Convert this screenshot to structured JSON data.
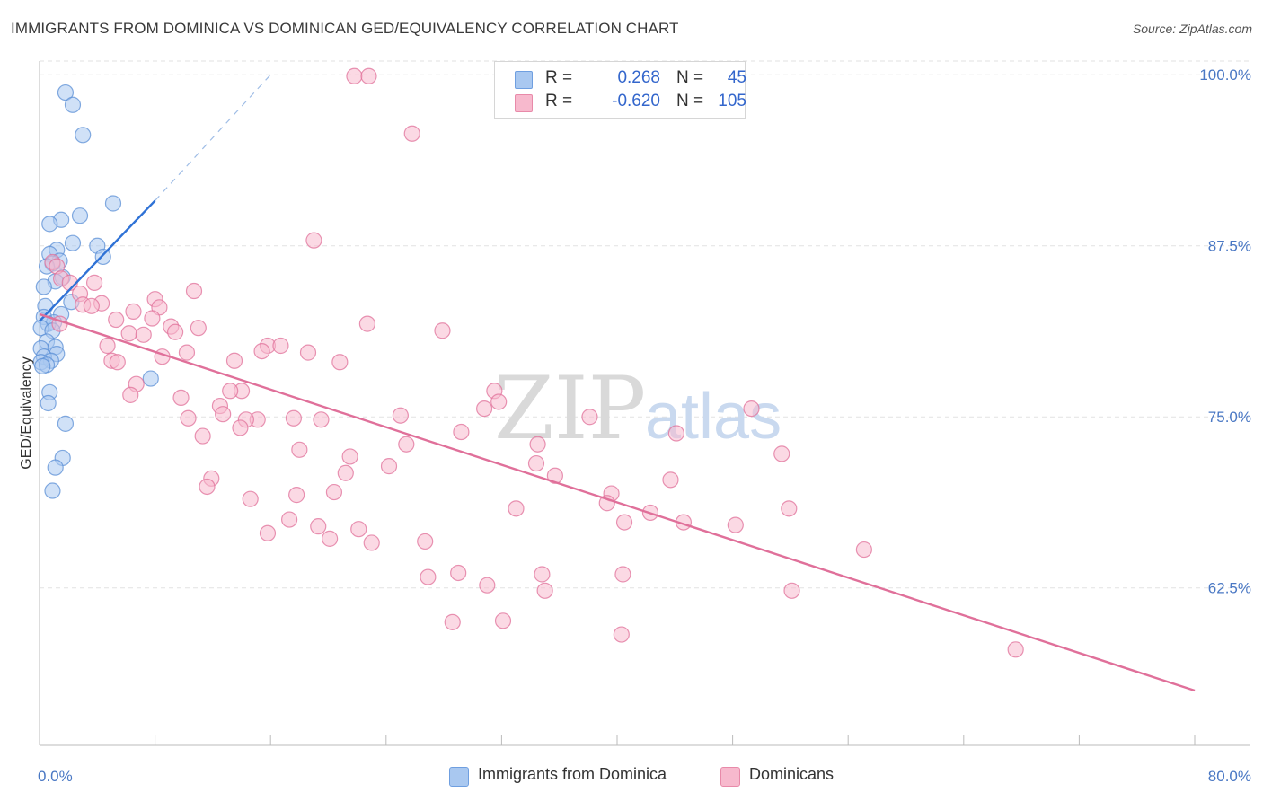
{
  "title": "IMMIGRANTS FROM DOMINICA VS DOMINICAN GED/EQUIVALENCY CORRELATION CHART",
  "source": "Source: ZipAtlas.com",
  "watermark": {
    "zip": "ZIP",
    "atlas": "atlas"
  },
  "legend_top": {
    "rows": [
      {
        "r_label": "R =",
        "r_value": "0.268",
        "n_label": "N =",
        "n_value": "45",
        "color": "#a9c8f0"
      },
      {
        "r_label": "R =",
        "r_value": "-0.620",
        "n_label": "N =",
        "n_value": "105",
        "color": "#f7b9cd"
      }
    ]
  },
  "legend_bottom": [
    {
      "label": "Immigrants from Dominica",
      "color": "#a9c8f0"
    },
    {
      "label": "Dominicans",
      "color": "#f7b9cd"
    }
  ],
  "chart_data": {
    "type": "scatter",
    "title": "IMMIGRANTS FROM DOMINICA VS DOMINICAN GED/EQUIVALENCY CORRELATION CHART",
    "xlabel": "",
    "ylabel": "GED/Equivalency",
    "xlim": [
      0,
      80
    ],
    "ylim": [
      51,
      101
    ],
    "x_ticks": [
      0,
      8,
      16,
      24,
      32,
      40,
      48,
      56,
      64,
      72,
      80
    ],
    "x_tick_labels_shown": {
      "0": "0.0%",
      "80": "80.0%"
    },
    "y_ticks": [
      62.5,
      75.0,
      87.5,
      100.0
    ],
    "y_tick_labels": [
      "62.5%",
      "75.0%",
      "87.5%",
      "100.0%"
    ],
    "grid": true,
    "series": [
      {
        "name": "Immigrants from Dominica",
        "color": "#5b8fd6",
        "fill": "#a9c8f0",
        "r": 0.268,
        "n": 45,
        "trend": {
          "x0": 0.0,
          "y0": 82.0,
          "x1": 8.0,
          "y1": 90.8,
          "dash_to_x": 16.0,
          "dash_to_y": 100.0
        },
        "points": [
          [
            1.8,
            98.7
          ],
          [
            2.3,
            97.8
          ],
          [
            3.0,
            95.6
          ],
          [
            5.1,
            90.6
          ],
          [
            2.8,
            89.7
          ],
          [
            1.5,
            89.4
          ],
          [
            0.7,
            89.1
          ],
          [
            2.3,
            87.7
          ],
          [
            4.0,
            87.5
          ],
          [
            1.2,
            87.2
          ],
          [
            0.7,
            86.9
          ],
          [
            4.4,
            86.7
          ],
          [
            1.4,
            86.4
          ],
          [
            0.9,
            86.2
          ],
          [
            0.5,
            86.0
          ],
          [
            1.6,
            85.2
          ],
          [
            1.1,
            84.9
          ],
          [
            0.3,
            84.5
          ],
          [
            2.2,
            83.4
          ],
          [
            0.4,
            83.1
          ],
          [
            1.5,
            82.5
          ],
          [
            0.3,
            82.3
          ],
          [
            1.0,
            81.9
          ],
          [
            0.6,
            81.8
          ],
          [
            0.1,
            81.5
          ],
          [
            0.9,
            81.3
          ],
          [
            0.5,
            80.5
          ],
          [
            1.1,
            80.1
          ],
          [
            0.1,
            80.0
          ],
          [
            1.2,
            79.6
          ],
          [
            0.3,
            79.4
          ],
          [
            0.8,
            79.1
          ],
          [
            0.1,
            79.0
          ],
          [
            0.5,
            78.8
          ],
          [
            0.2,
            78.7
          ],
          [
            7.7,
            77.8
          ],
          [
            0.7,
            76.8
          ],
          [
            0.6,
            76.0
          ],
          [
            1.8,
            74.5
          ],
          [
            1.6,
            72.0
          ],
          [
            1.1,
            71.3
          ],
          [
            0.9,
            69.6
          ]
        ]
      },
      {
        "name": "Dominicans",
        "color": "#e0709a",
        "fill": "#f7b9cd",
        "r": -0.62,
        "n": 105,
        "trend": {
          "x0": 0.0,
          "y0": 82.5,
          "x1": 80.0,
          "y1": 55.0
        },
        "points": [
          [
            21.8,
            99.9
          ],
          [
            22.8,
            99.9
          ],
          [
            25.8,
            95.7
          ],
          [
            19.0,
            87.9
          ],
          [
            0.9,
            86.3
          ],
          [
            1.2,
            86.0
          ],
          [
            1.5,
            85.1
          ],
          [
            2.1,
            84.8
          ],
          [
            3.8,
            84.8
          ],
          [
            10.7,
            84.2
          ],
          [
            2.8,
            84.0
          ],
          [
            8.0,
            83.6
          ],
          [
            3.0,
            83.2
          ],
          [
            4.3,
            83.3
          ],
          [
            3.6,
            83.1
          ],
          [
            8.3,
            83.0
          ],
          [
            6.5,
            82.7
          ],
          [
            5.3,
            82.1
          ],
          [
            7.8,
            82.2
          ],
          [
            1.4,
            81.8
          ],
          [
            9.1,
            81.6
          ],
          [
            11.0,
            81.5
          ],
          [
            22.7,
            81.8
          ],
          [
            27.9,
            81.3
          ],
          [
            9.4,
            81.2
          ],
          [
            6.2,
            81.1
          ],
          [
            7.2,
            81.0
          ],
          [
            4.7,
            80.2
          ],
          [
            15.8,
            80.2
          ],
          [
            16.7,
            80.2
          ],
          [
            15.4,
            79.8
          ],
          [
            18.6,
            79.7
          ],
          [
            10.2,
            79.7
          ],
          [
            8.5,
            79.4
          ],
          [
            13.5,
            79.1
          ],
          [
            20.8,
            79.0
          ],
          [
            5.0,
            79.1
          ],
          [
            5.4,
            79.0
          ],
          [
            6.7,
            77.4
          ],
          [
            14.0,
            76.9
          ],
          [
            13.2,
            76.9
          ],
          [
            31.5,
            76.9
          ],
          [
            6.3,
            76.6
          ],
          [
            9.8,
            76.4
          ],
          [
            31.8,
            76.1
          ],
          [
            30.8,
            75.6
          ],
          [
            49.3,
            75.6
          ],
          [
            12.5,
            75.8
          ],
          [
            12.7,
            75.2
          ],
          [
            25.0,
            75.1
          ],
          [
            38.1,
            75.0
          ],
          [
            10.3,
            74.9
          ],
          [
            15.1,
            74.8
          ],
          [
            17.6,
            74.9
          ],
          [
            19.5,
            74.8
          ],
          [
            14.3,
            74.8
          ],
          [
            13.9,
            74.2
          ],
          [
            29.2,
            73.9
          ],
          [
            44.1,
            73.8
          ],
          [
            11.3,
            73.6
          ],
          [
            25.4,
            73.0
          ],
          [
            34.5,
            73.0
          ],
          [
            18.0,
            72.6
          ],
          [
            21.5,
            72.1
          ],
          [
            51.4,
            72.3
          ],
          [
            34.4,
            71.6
          ],
          [
            24.2,
            71.4
          ],
          [
            11.9,
            70.5
          ],
          [
            21.2,
            70.9
          ],
          [
            35.7,
            70.7
          ],
          [
            43.7,
            70.4
          ],
          [
            11.6,
            69.9
          ],
          [
            20.4,
            69.5
          ],
          [
            17.8,
            69.3
          ],
          [
            14.6,
            69.0
          ],
          [
            39.6,
            69.4
          ],
          [
            33.0,
            68.3
          ],
          [
            39.3,
            68.7
          ],
          [
            51.9,
            68.3
          ],
          [
            42.3,
            68.0
          ],
          [
            40.5,
            67.3
          ],
          [
            44.6,
            67.3
          ],
          [
            48.2,
            67.1
          ],
          [
            17.3,
            67.5
          ],
          [
            19.3,
            67.0
          ],
          [
            22.1,
            66.8
          ],
          [
            15.8,
            66.5
          ],
          [
            20.1,
            66.1
          ],
          [
            23.0,
            65.8
          ],
          [
            26.7,
            65.9
          ],
          [
            57.1,
            65.3
          ],
          [
            29.0,
            63.6
          ],
          [
            34.8,
            63.5
          ],
          [
            40.4,
            63.5
          ],
          [
            26.9,
            63.3
          ],
          [
            31.0,
            62.7
          ],
          [
            35.0,
            62.3
          ],
          [
            52.1,
            62.3
          ],
          [
            28.6,
            60.0
          ],
          [
            32.1,
            60.1
          ],
          [
            40.3,
            59.1
          ],
          [
            67.6,
            58.0
          ]
        ]
      }
    ]
  }
}
